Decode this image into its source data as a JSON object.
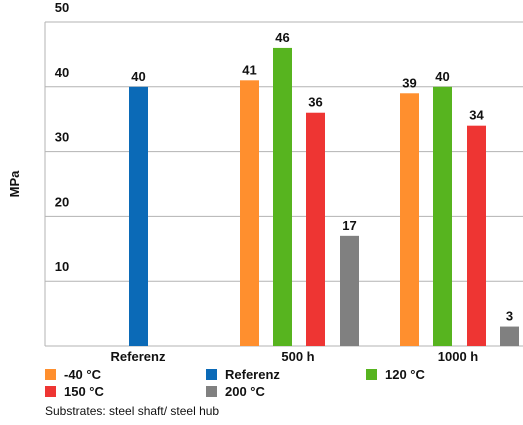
{
  "chart_data": {
    "type": "bar",
    "ylabel": "MPa",
    "ylim": [
      0,
      50
    ],
    "yticks": [
      10,
      20,
      30,
      40,
      50
    ],
    "grid": "horizontal",
    "legend_position": "bottom",
    "groups": [
      {
        "label": "Referenz",
        "bars": [
          {
            "series": "Referenz",
            "value": 40
          }
        ]
      },
      {
        "label": "500 h",
        "bars": [
          {
            "series": "-40 °C",
            "value": 41
          },
          {
            "series": "120 °C",
            "value": 46
          },
          {
            "series": "150 °C",
            "value": 36
          },
          {
            "series": "200 °C",
            "value": 17
          }
        ]
      },
      {
        "label": "1000 h",
        "bars": [
          {
            "series": "-40 °C",
            "value": 39
          },
          {
            "series": "120 °C",
            "value": 40
          },
          {
            "series": "150 °C",
            "value": 34
          },
          {
            "series": "200 °C",
            "value": 3
          }
        ]
      }
    ],
    "series": [
      {
        "name": "-40 °C",
        "color": "#ff8f2e"
      },
      {
        "name": "Referenz",
        "color": "#0b6ab7"
      },
      {
        "name": "120 °C",
        "color": "#57b41f"
      },
      {
        "name": "150 °C",
        "color": "#ee3533"
      },
      {
        "name": "200 °C",
        "color": "#808080"
      }
    ]
  },
  "caption": "Substrates: steel shaft/ steel hub"
}
